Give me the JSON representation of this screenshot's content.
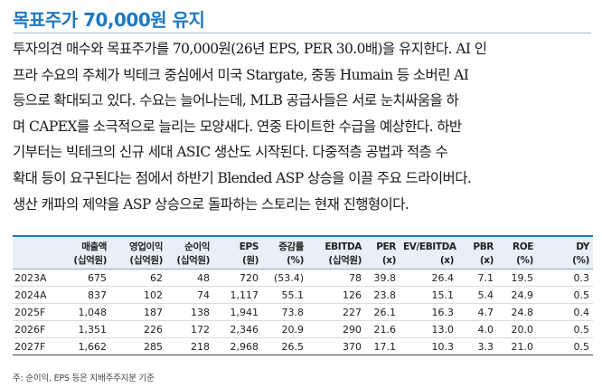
{
  "title": "목표주가 70,000원 유지",
  "body_lines": [
    "투자의견 매수와 목표주가를 70,000원(26년 EPS, PER 30.0배)을 유지한다. AI 인",
    "프라 수요의 주체가 빅테크 중심에서 미국 Stargate, 중동 Humain 등 소버린 AI",
    "등으로 확대되고 있다. 수요는 늘어나는데, MLB 공급사들은 서로 눈치싸움을 하",
    "며 CAPEX를 소극적으로 늘리는 모양새다. 연중 타이트한 수급을 예상한다. 하반",
    "기부터는 빅테크의 신규 세대 ASIC 생산도 시작된다. 다중적층 공법과 적층 수",
    "확대 등이 요구된다는 점에서 하반기 Blended ASP 상승을 이끌 주요 드라이버다.",
    "생산 캐파의 제약을 ASP 상승으로 돌파하는 스토리는 현재 진행형이다."
  ],
  "table": {
    "headers": [
      {
        "label": "",
        "unit": ""
      },
      {
        "label": "매출액",
        "unit": "(십억원)"
      },
      {
        "label": "영업이익",
        "unit": "(십억원)"
      },
      {
        "label": "순이익",
        "unit": "(십억원)"
      },
      {
        "label": "EPS",
        "unit": "(원)"
      },
      {
        "label": "증감률",
        "unit": "(%)"
      },
      {
        "label": "EBITDA",
        "unit": "(십억원)"
      },
      {
        "label": "PER",
        "unit": "(x)"
      },
      {
        "label": "EV/EBITDA",
        "unit": "(x)"
      },
      {
        "label": "PBR",
        "unit": "(x)"
      },
      {
        "label": "ROE",
        "unit": "(%)"
      },
      {
        "label": "DY",
        "unit": "(%)"
      }
    ],
    "rows": [
      [
        "2023A",
        "675",
        "62",
        "48",
        "720",
        "(53.4)",
        "78",
        "39.8",
        "26.4",
        "7.1",
        "19.5",
        "0.3"
      ],
      [
        "2024A",
        "837",
        "102",
        "74",
        "1,117",
        "55.1",
        "126",
        "23.8",
        "15.1",
        "5.4",
        "24.9",
        "0.5"
      ],
      [
        "2025F",
        "1,048",
        "187",
        "138",
        "1,941",
        "73.8",
        "227",
        "26.1",
        "16.3",
        "4.7",
        "24.8",
        "0.4"
      ],
      [
        "2026F",
        "1,351",
        "226",
        "172",
        "2,346",
        "20.9",
        "290",
        "21.6",
        "13.0",
        "4.0",
        "20.0",
        "0.5"
      ],
      [
        "2027F",
        "1,662",
        "285",
        "218",
        "2,968",
        "26.5",
        "370",
        "17.1",
        "10.3",
        "3.3",
        "21.0",
        "0.5"
      ]
    ]
  },
  "note": "주: 순이익, EPS 등은 지배주주지분 기준"
}
